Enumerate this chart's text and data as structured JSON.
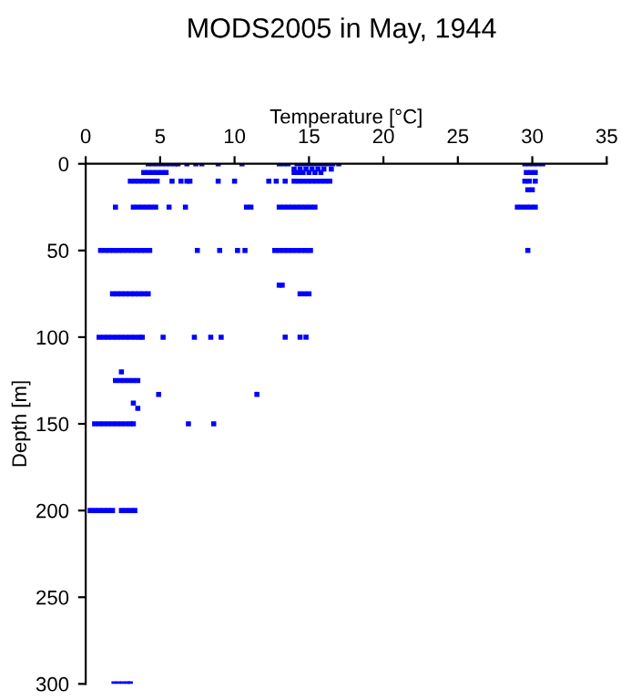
{
  "chart_data": {
    "type": "scatter",
    "title": "MODS2005 in May, 1944",
    "xlabel": "Temperature [°C]",
    "ylabel": "Depth [m]",
    "xlim": [
      0,
      35
    ],
    "xticks": [
      0,
      5,
      10,
      15,
      20,
      25,
      30,
      35
    ],
    "ylim": [
      300,
      0
    ],
    "yticks": [
      0,
      50,
      100,
      150,
      200,
      250,
      300
    ],
    "grid": false,
    "marker": "square",
    "series": [
      {
        "color": "#0000ff",
        "x": [
          4.2,
          4.5,
          4.8,
          5.1,
          5.4,
          5.7,
          6.0,
          6.2,
          6.8,
          7.4,
          7.8,
          8.9,
          10.5,
          13.0,
          13.3,
          13.6,
          14.2,
          14.5,
          14.8,
          15.1,
          15.4,
          15.7,
          16.0,
          16.3,
          16.6,
          17.0,
          29.5,
          29.8,
          30.1,
          30.4,
          30.7,
          14.0,
          14.4,
          14.8,
          15.2,
          15.6,
          16.0,
          16.5,
          3.9,
          4.2,
          4.5,
          4.8,
          5.1,
          5.4,
          14.0,
          14.3,
          14.6,
          15.0,
          15.4,
          15.8,
          29.6,
          29.9,
          30.2,
          3.0,
          3.3,
          3.6,
          3.9,
          4.2,
          4.5,
          4.8,
          5.8,
          6.4,
          6.8,
          7.0,
          8.9,
          10.0,
          12.3,
          12.8,
          13.4,
          14.0,
          14.3,
          14.6,
          14.9,
          15.2,
          15.5,
          15.8,
          16.1,
          16.4,
          29.5,
          29.8,
          30.2,
          29.7,
          30.0,
          2.0,
          3.2,
          3.5,
          3.8,
          4.1,
          4.4,
          4.7,
          5.6,
          6.7,
          10.8,
          11.1,
          13.0,
          13.3,
          13.6,
          13.9,
          14.2,
          14.5,
          14.8,
          15.1,
          15.4,
          29.0,
          29.3,
          29.6,
          29.9,
          30.2,
          1.0,
          1.3,
          1.6,
          1.9,
          2.2,
          2.5,
          2.8,
          3.1,
          3.4,
          3.7,
          4.0,
          4.3,
          7.5,
          9.0,
          10.2,
          10.7,
          12.7,
          13.0,
          13.3,
          13.6,
          13.9,
          14.2,
          14.5,
          14.8,
          15.1,
          29.7,
          13.0,
          13.2,
          1.8,
          2.1,
          2.4,
          2.7,
          3.0,
          3.3,
          3.6,
          3.9,
          4.2,
          14.4,
          14.7,
          15.0,
          0.9,
          1.2,
          1.5,
          1.8,
          2.1,
          2.4,
          2.7,
          3.0,
          3.3,
          3.6,
          3.8,
          5.2,
          7.3,
          8.4,
          9.1,
          13.4,
          14.4,
          14.8,
          2.4,
          2.0,
          2.3,
          2.6,
          2.9,
          3.2,
          3.5,
          4.9,
          11.5,
          3.2,
          3.5,
          0.6,
          0.9,
          1.2,
          1.5,
          1.8,
          2.1,
          2.4,
          2.7,
          3.0,
          3.2,
          6.9,
          8.6,
          0.3,
          0.6,
          0.9,
          1.2,
          1.5,
          1.8,
          2.4,
          2.7,
          3.0,
          3.3,
          1.9,
          2.2,
          2.5,
          2.8,
          3.0
        ],
        "values": [
          0,
          0,
          0,
          0,
          0,
          0,
          0,
          0,
          0,
          0,
          0,
          0,
          0,
          0,
          0,
          0,
          0,
          0,
          0,
          0,
          0,
          0,
          0,
          0,
          0,
          0,
          0,
          0,
          0,
          0,
          0,
          3,
          3,
          3,
          3,
          3,
          3,
          3,
          5,
          5,
          5,
          5,
          5,
          5,
          5,
          5,
          5,
          5,
          5,
          5,
          5,
          5,
          5,
          10,
          10,
          10,
          10,
          10,
          10,
          10,
          10,
          10,
          10,
          10,
          10,
          10,
          10,
          10,
          10,
          10,
          10,
          10,
          10,
          10,
          10,
          10,
          10,
          10,
          10,
          10,
          10,
          15,
          15,
          25,
          25,
          25,
          25,
          25,
          25,
          25,
          25,
          25,
          25,
          25,
          25,
          25,
          25,
          25,
          25,
          25,
          25,
          25,
          25,
          25,
          25,
          25,
          25,
          25,
          50,
          50,
          50,
          50,
          50,
          50,
          50,
          50,
          50,
          50,
          50,
          50,
          50,
          50,
          50,
          50,
          50,
          50,
          50,
          50,
          50,
          50,
          50,
          50,
          50,
          50,
          70,
          70,
          75,
          75,
          75,
          75,
          75,
          75,
          75,
          75,
          75,
          75,
          75,
          75,
          100,
          100,
          100,
          100,
          100,
          100,
          100,
          100,
          100,
          100,
          100,
          100,
          100,
          100,
          100,
          100,
          100,
          100,
          120,
          125,
          125,
          125,
          125,
          125,
          125,
          133,
          133,
          138,
          141,
          150,
          150,
          150,
          150,
          150,
          150,
          150,
          150,
          150,
          150,
          150,
          150,
          200,
          200,
          200,
          200,
          200,
          200,
          200,
          200,
          200,
          200,
          300,
          300,
          300,
          300,
          300
        ]
      }
    ]
  }
}
